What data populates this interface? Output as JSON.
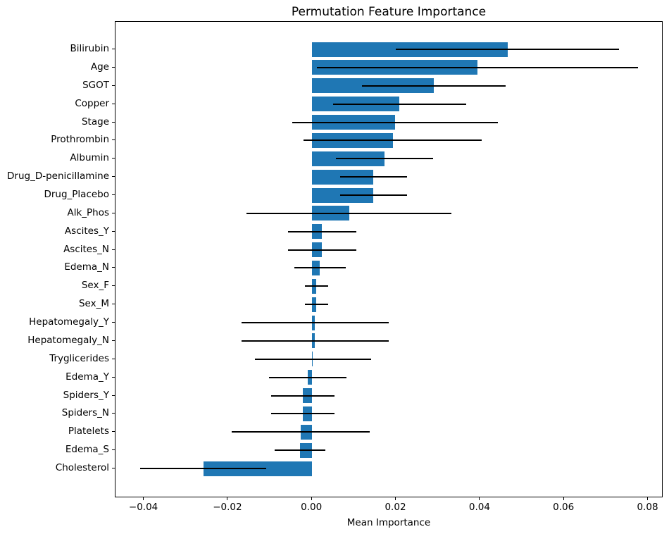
{
  "title": "Permutation Feature Importance",
  "chart_data": {
    "type": "bar",
    "orientation": "horizontal",
    "title": "Permutation Feature Importance",
    "xlabel": "Mean Importance",
    "ylabel": "",
    "grid": false,
    "legend": null,
    "bar_color": "#1f77b4",
    "errorbar_color": "#000000",
    "background_color": "#ffffff",
    "xlim": [
      -0.0468,
      0.0836
    ],
    "x_ticks": [
      -0.04,
      -0.02,
      0.0,
      0.02,
      0.04,
      0.06,
      0.08
    ],
    "x_tick_labels": [
      "−0.04",
      "−0.02",
      "0.00",
      "0.02",
      "0.04",
      "0.06",
      "0.08"
    ],
    "error_bars": true,
    "features": [
      {
        "label": "Bilirubin",
        "mean": 0.0465,
        "err": 0.0266
      },
      {
        "label": "Age",
        "mean": 0.0394,
        "err": 0.0382
      },
      {
        "label": "SGOT",
        "mean": 0.029,
        "err": 0.0171
      },
      {
        "label": "Copper",
        "mean": 0.0208,
        "err": 0.0159
      },
      {
        "label": "Stage",
        "mean": 0.0198,
        "err": 0.0245
      },
      {
        "label": "Prothrombin",
        "mean": 0.0192,
        "err": 0.0212
      },
      {
        "label": "Albumin",
        "mean": 0.0172,
        "err": 0.0116
      },
      {
        "label": "Drug_D-penicillamine",
        "mean": 0.0146,
        "err": 0.008
      },
      {
        "label": "Drug_Placebo",
        "mean": 0.0146,
        "err": 0.008
      },
      {
        "label": "Alk_Phos",
        "mean": 0.0088,
        "err": 0.0244
      },
      {
        "label": "Ascites_Y",
        "mean": 0.0024,
        "err": 0.0081
      },
      {
        "label": "Ascites_N",
        "mean": 0.0024,
        "err": 0.0081
      },
      {
        "label": "Edema_N",
        "mean": 0.0019,
        "err": 0.0061
      },
      {
        "label": "Sex_F",
        "mean": 0.001,
        "err": 0.0028
      },
      {
        "label": "Sex_M",
        "mean": 0.001,
        "err": 0.0028
      },
      {
        "label": "Hepatomegaly_Y",
        "mean": 0.0007,
        "err": 0.0175
      },
      {
        "label": "Hepatomegaly_N",
        "mean": 0.0007,
        "err": 0.0175
      },
      {
        "label": "Tryglicerides",
        "mean": 0.0002,
        "err": 0.0139
      },
      {
        "label": "Edema_Y",
        "mean": -0.0011,
        "err": 0.0092
      },
      {
        "label": "Spiders_Y",
        "mean": -0.0022,
        "err": 0.0075
      },
      {
        "label": "Spiders_N",
        "mean": -0.0022,
        "err": 0.0075
      },
      {
        "label": "Platelets",
        "mean": -0.0027,
        "err": 0.0164
      },
      {
        "label": "Edema_S",
        "mean": -0.0029,
        "err": 0.006
      },
      {
        "label": "Cholesterol",
        "mean": -0.0259,
        "err": 0.015
      }
    ]
  }
}
